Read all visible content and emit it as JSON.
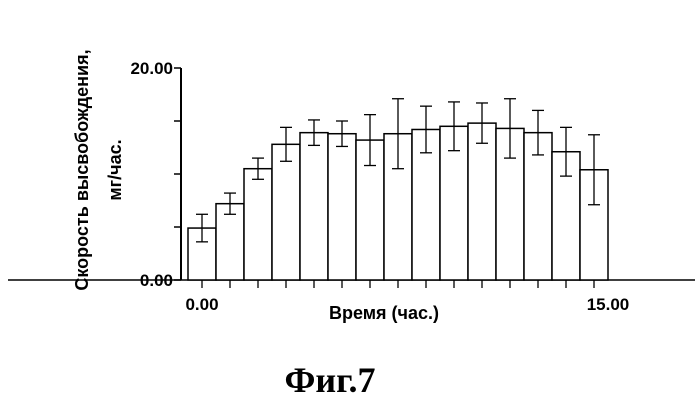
{
  "chart_data": {
    "type": "bar",
    "xlabel": "Время (час.)",
    "ylabel_line1": "Скорость высвобождения,",
    "ylabel_line2": "мг/час.",
    "xlim": [
      0,
      15
    ],
    "ylim": [
      0,
      20
    ],
    "x_ticks": [
      {
        "value": 0,
        "label": "0.00"
      },
      {
        "value": 15,
        "label": "15.00"
      }
    ],
    "y_ticks": [
      {
        "value": 0,
        "label": "0.00"
      },
      {
        "value": 20,
        "label": "20.00"
      }
    ],
    "x": [
      0,
      1,
      2,
      3,
      4,
      5,
      6,
      7,
      8,
      9,
      10,
      11,
      12,
      13,
      14
    ],
    "values": [
      4.9,
      7.2,
      10.5,
      12.8,
      13.9,
      13.8,
      13.2,
      13.8,
      14.2,
      14.5,
      14.8,
      14.3,
      13.9,
      12.1,
      10.4
    ],
    "error": [
      1.3,
      1.0,
      1.0,
      1.6,
      1.2,
      1.2,
      2.4,
      3.3,
      2.2,
      2.3,
      1.9,
      2.8,
      2.1,
      2.3,
      3.3
    ],
    "grid": false,
    "bar_fill": "#ffffff",
    "bar_stroke": "#000000"
  },
  "caption": "Фиг.7"
}
